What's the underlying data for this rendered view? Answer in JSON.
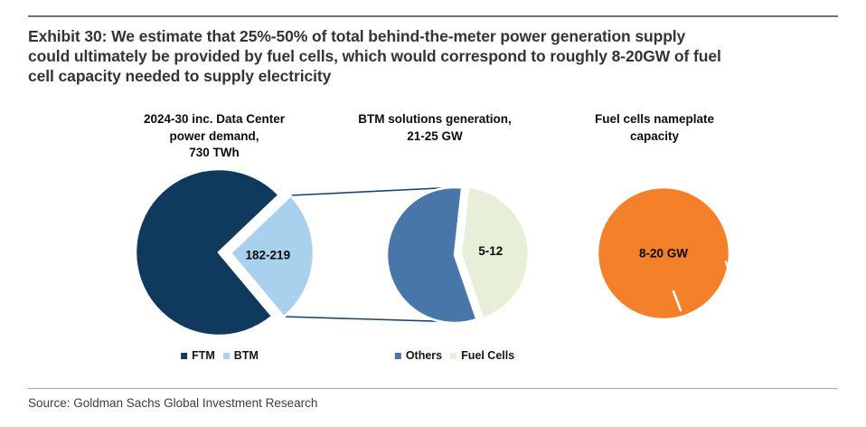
{
  "header": {
    "exhibit_title": "Exhibit 30: We estimate that 25%-50% of total behind-the-meter power generation supply\ncould ultimately be provided by fuel cells, which would correspond to roughly 8-20GW of fuel\ncell capacity needed to supply electricity"
  },
  "footer": {
    "source_text": "Source: Goldman Sachs Global Investment Research"
  },
  "colors": {
    "ftm_dark_navy": "#0f3a5e",
    "btm_light_blue": "#a9d0ed",
    "others_blue": "#4876a9",
    "fuel_cells_green": "#e8efd9",
    "fuel_cells_orange": "#f4802a",
    "connector": "#1a4369"
  },
  "chart_data": [
    {
      "type": "pie",
      "title": "2024-30 inc. Data Center\npower demand,\n730 TWh",
      "units": "TWh",
      "total_label": "730 TWh",
      "slices": [
        {
          "name": "FTM",
          "fraction": 0.74,
          "color": "#0f3a5e",
          "exploded": false,
          "value_label": ""
        },
        {
          "name": "BTM",
          "fraction": 0.26,
          "color": "#a9d0ed",
          "exploded": true,
          "value_label": "182-219"
        }
      ],
      "legend": [
        "FTM",
        "BTM"
      ],
      "legend_position": "bottom"
    },
    {
      "type": "pie",
      "title": "BTM solutions generation,\n21-25 GW",
      "units": "GW",
      "total_label": "21-25 GW",
      "slices": [
        {
          "name": "Others",
          "fraction": 0.57,
          "color": "#4876a9",
          "exploded": false,
          "value_label": ""
        },
        {
          "name": "Fuel Cells",
          "fraction": 0.43,
          "color": "#e8efd9",
          "exploded": true,
          "value_label": "5-12"
        }
      ],
      "legend": [
        "Others",
        "Fuel Cells"
      ],
      "legend_position": "bottom"
    },
    {
      "type": "pie",
      "title": "Fuel cells nameplate\ncapacity",
      "units": "GW",
      "total_label": "8-20 GW",
      "slices": [
        {
          "name": "Fuel cells",
          "fraction": 1.0,
          "color": "#f4802a",
          "exploded": false,
          "value_label": "8-20 GW"
        }
      ],
      "legend": [],
      "legend_position": "none"
    }
  ]
}
